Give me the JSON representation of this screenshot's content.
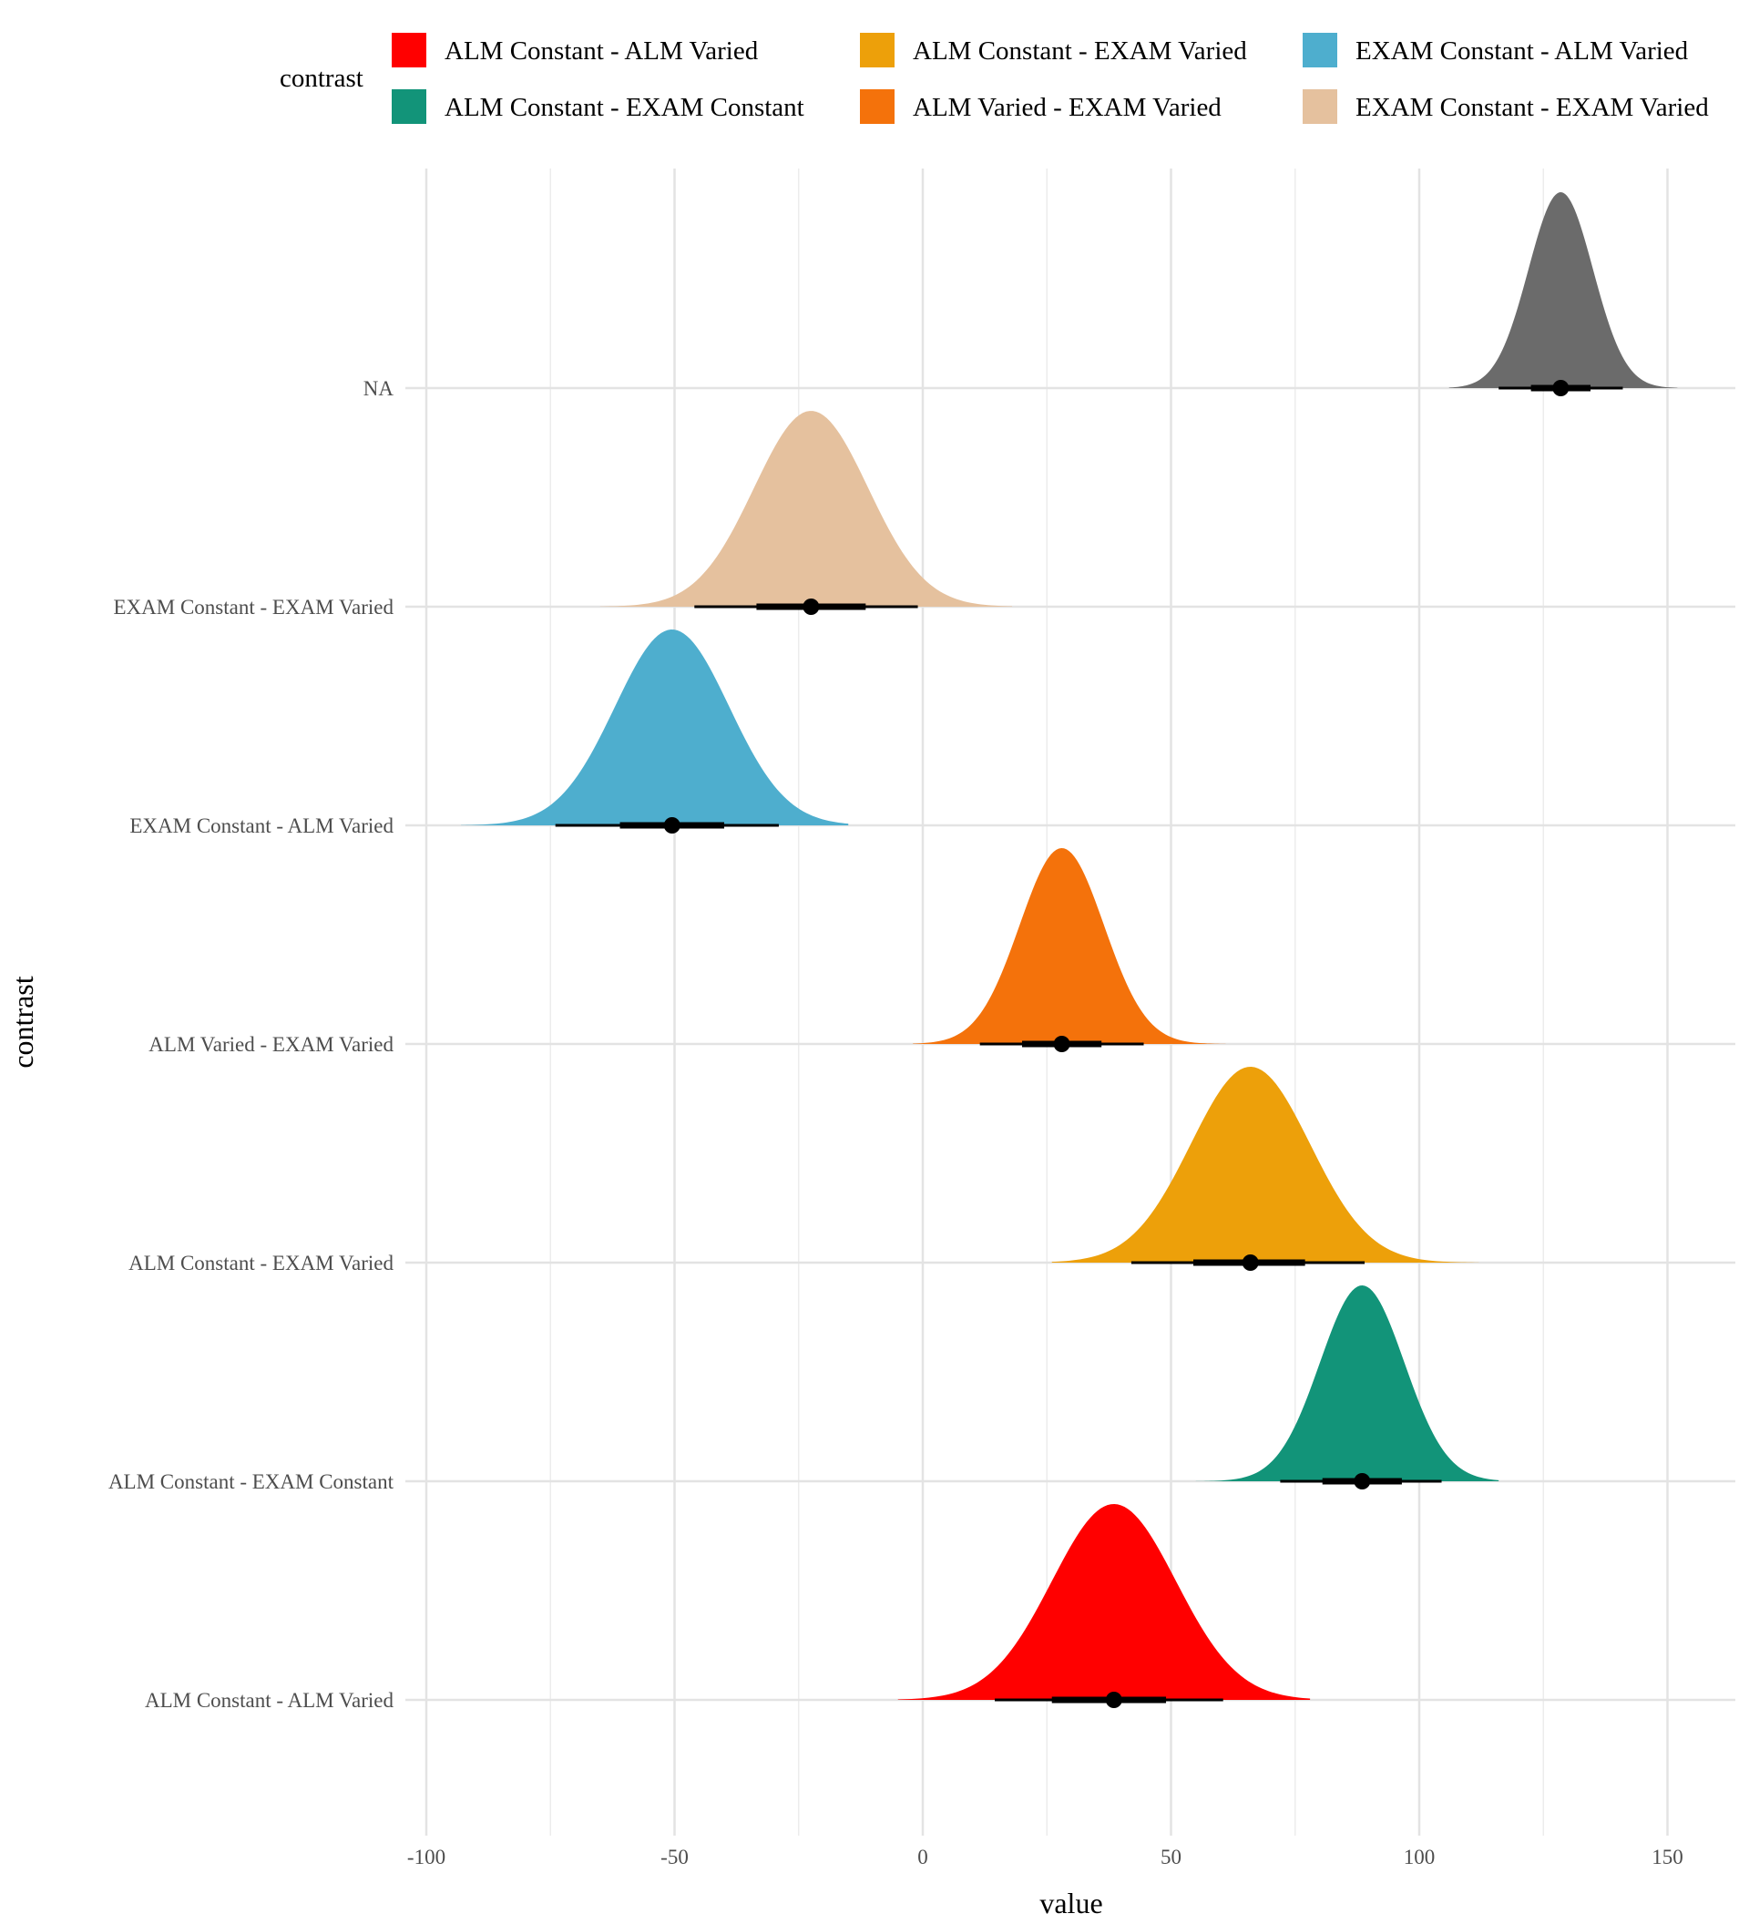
{
  "chart_data": {
    "type": "area",
    "title": "",
    "xlabel": "value",
    "ylabel": "contrast",
    "xlim": [
      -100,
      165
    ],
    "x_ticks": [
      -100,
      -50,
      0,
      50,
      100,
      150
    ],
    "x_tick_labels": [
      "-100",
      "-50",
      "0",
      "50",
      "100",
      "150"
    ],
    "grid": true,
    "legend": {
      "title": "contrast",
      "position": "top",
      "entries": [
        {
          "label": "ALM Constant - ALM Varied",
          "color": "#FF0000"
        },
        {
          "label": "ALM Constant - EXAM Constant",
          "color": "#129479"
        },
        {
          "label": "ALM Constant - EXAM Varied",
          "color": "#EDA00A"
        },
        {
          "label": "ALM Varied - EXAM Varied",
          "color": "#F4720B"
        },
        {
          "label": "EXAM Constant - ALM Varied",
          "color": "#4EAECE"
        },
        {
          "label": "EXAM Constant - EXAM Varied",
          "color": "#E5C19E"
        }
      ]
    },
    "categories": [
      "ALM Constant - ALM Varied",
      "ALM Constant - EXAM Constant",
      "ALM Constant - EXAM Varied",
      "ALM Varied - EXAM Varied",
      "EXAM Constant - ALM Varied",
      "EXAM Constant - EXAM Varied",
      "NA"
    ],
    "series": [
      {
        "category": "ALM Constant - ALM Varied",
        "color": "#FF0000",
        "point": 38.5,
        "interval_66": [
          26,
          49
        ],
        "interval_95": [
          14.5,
          60.5
        ],
        "density_range": [
          -5,
          78
        ],
        "mean": 38.5,
        "sd": 12.5
      },
      {
        "category": "ALM Constant - EXAM Constant",
        "color": "#129479",
        "point": 88.5,
        "interval_66": [
          80.5,
          96.5
        ],
        "interval_95": [
          72,
          104.5
        ],
        "density_range": [
          55,
          116
        ],
        "mean": 88.5,
        "sd": 8.5
      },
      {
        "category": "ALM Constant - EXAM Varied",
        "color": "#EDA00A",
        "point": 66,
        "interval_66": [
          54.5,
          77
        ],
        "interval_95": [
          42,
          89
        ],
        "density_range": [
          26,
          112
        ],
        "mean": 66,
        "sd": 12
      },
      {
        "category": "ALM Varied - EXAM Varied",
        "color": "#F4720B",
        "point": 28,
        "interval_66": [
          20,
          36
        ],
        "interval_95": [
          11.5,
          44.5
        ],
        "density_range": [
          -2,
          61
        ],
        "mean": 28,
        "sd": 8.5
      },
      {
        "category": "EXAM Constant - ALM Varied",
        "color": "#4EAECE",
        "point": -50.5,
        "interval_66": [
          -61,
          -40
        ],
        "interval_95": [
          -74,
          -29
        ],
        "density_range": [
          -93,
          -15
        ],
        "mean": -50.5,
        "sd": 11.5
      },
      {
        "category": "EXAM Constant - EXAM Varied",
        "color": "#E5C19E",
        "point": -22.5,
        "interval_66": [
          -33.5,
          -11.5
        ],
        "interval_95": [
          -46,
          -1
        ],
        "density_range": [
          -65,
          18
        ],
        "mean": -22.5,
        "sd": 11.5
      },
      {
        "category": "NA",
        "color": "#6B6B6B",
        "point": 128.5,
        "interval_66": [
          122.5,
          134.5
        ],
        "interval_95": [
          116,
          141
        ],
        "density_range": [
          106,
          152
        ],
        "mean": 128.5,
        "sd": 6.5
      }
    ]
  }
}
